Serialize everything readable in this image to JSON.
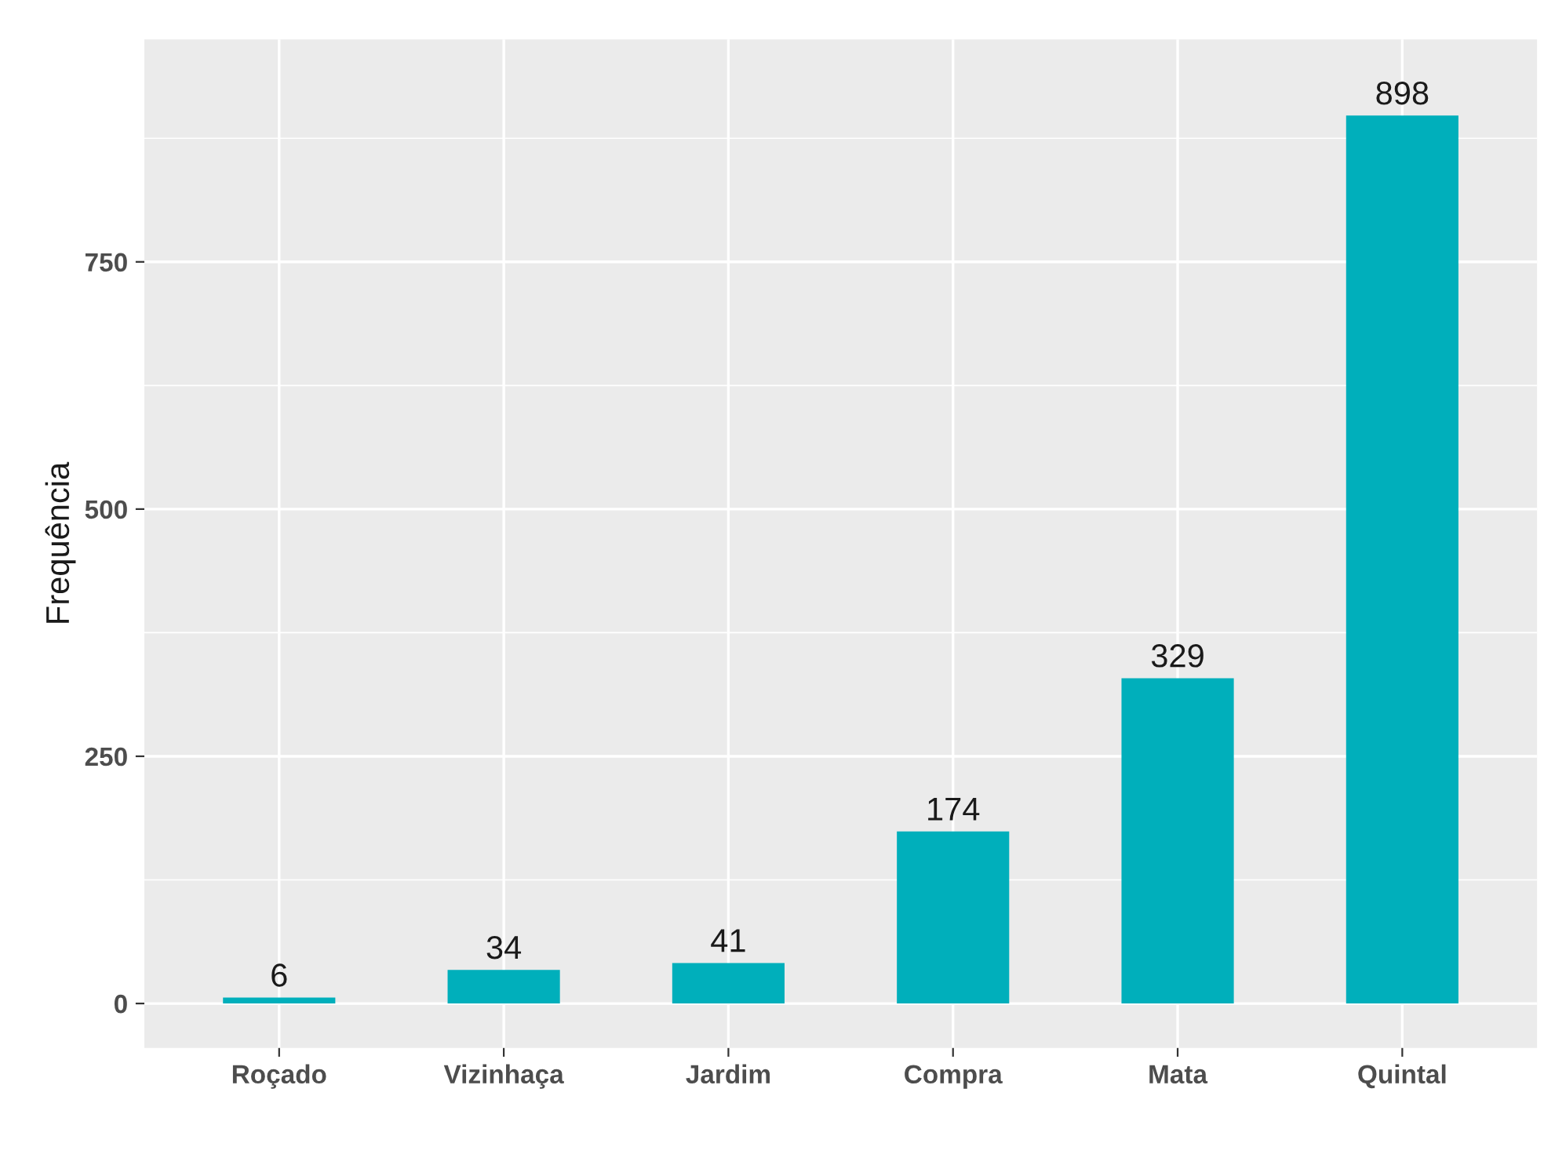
{
  "chart_data": {
    "type": "bar",
    "ylabel": "Frequência",
    "categories": [
      "Roçado",
      "Vizinhaça",
      "Jardim",
      "Compra",
      "Mata",
      "Quintal"
    ],
    "values": [
      6,
      34,
      41,
      174,
      329,
      898
    ],
    "color": "#00afbb",
    "ylim": [
      -45,
      975
    ],
    "yticks": [
      0,
      {
        "value": 125,
        "label": null
      },
      250,
      {
        "value": 375,
        "label": null
      },
      500,
      {
        "value": 625,
        "label": null
      },
      750,
      {
        "value": 875,
        "label": null
      }
    ],
    "grid": true,
    "data_labels": true,
    "legend": false
  }
}
